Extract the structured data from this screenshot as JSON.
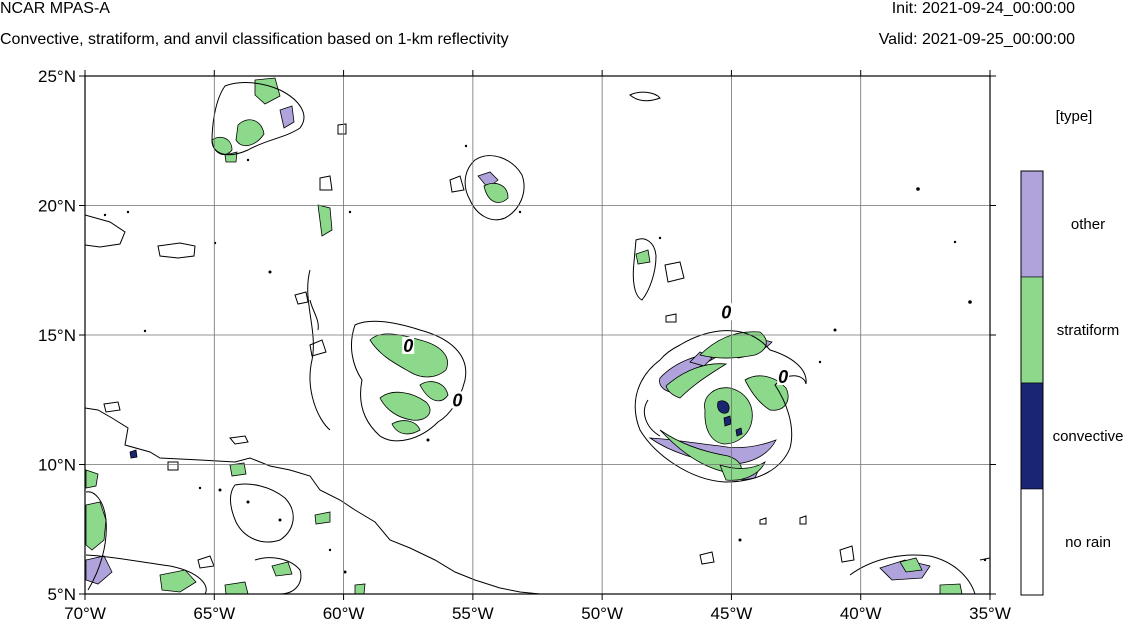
{
  "header": {
    "model": "NCAR MPAS-A",
    "subtitle": "Convective, stratiform, and anvil classification based on 1-km reflectivity",
    "init": "Init: 2021-09-24_00:00:00",
    "valid": "Valid: 2021-09-25_00:00:00"
  },
  "map": {
    "lon_range": [
      -70,
      -35
    ],
    "lat_range": [
      5,
      25
    ],
    "lon_ticks": [
      {
        "value": -70,
        "label": "70°W"
      },
      {
        "value": -65,
        "label": "65°W"
      },
      {
        "value": -60,
        "label": "60°W"
      },
      {
        "value": -55,
        "label": "55°W"
      },
      {
        "value": -50,
        "label": "50°W"
      },
      {
        "value": -45,
        "label": "45°W"
      },
      {
        "value": -40,
        "label": "40°W"
      },
      {
        "value": -35,
        "label": "35°W"
      }
    ],
    "lat_ticks": [
      {
        "value": 25,
        "label": "25°N"
      },
      {
        "value": 20,
        "label": "20°N"
      },
      {
        "value": 15,
        "label": "15°N"
      },
      {
        "value": 10,
        "label": "10°N"
      },
      {
        "value": 5,
        "label": "5°N"
      }
    ],
    "grid": true,
    "contour_labels": [
      {
        "text": "0",
        "lon": -57.5,
        "lat": 14.5
      },
      {
        "text": "0",
        "lon": -55.6,
        "lat": 12.4
      },
      {
        "text": "0",
        "lon": -45.2,
        "lat": 15.8
      },
      {
        "text": "0",
        "lon": -43.0,
        "lat": 13.3
      }
    ]
  },
  "colors": {
    "other": "#b0a3dc",
    "stratiform": "#8cd98c",
    "convective": "#1b2673",
    "no_rain": "#ffffff",
    "contour": "#000000",
    "grid": "#707070"
  },
  "legend": {
    "title": "[type]",
    "items": [
      {
        "label": "other",
        "color": "#b0a3dc"
      },
      {
        "label": "stratiform",
        "color": "#8cd98c"
      },
      {
        "label": "convective",
        "color": "#1b2673"
      },
      {
        "label": "no rain",
        "color": "#ffffff"
      }
    ]
  }
}
